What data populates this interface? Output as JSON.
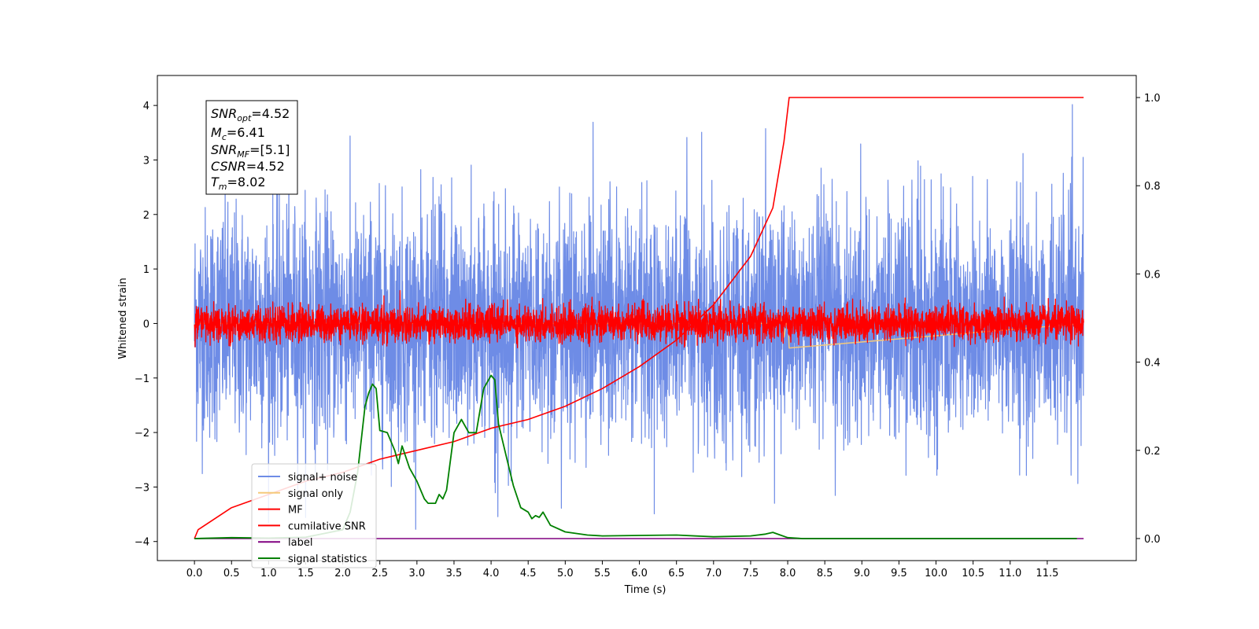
{
  "chart_data": {
    "type": "line",
    "xlabel": "Time (s)",
    "ylabel": "Whitened strain",
    "xlim": [
      -0.5,
      12.7
    ],
    "ylim": [
      -4.35,
      4.55
    ],
    "y2lim": [
      -0.05,
      1.05
    ],
    "xticks": [
      "0.0",
      "0.5",
      "1.0",
      "1.5",
      "2.0",
      "2.5",
      "3.0",
      "3.5",
      "4.0",
      "4.5",
      "5.0",
      "5.5",
      "6.0",
      "6.5",
      "7.0",
      "7.5",
      "8.0",
      "8.5",
      "9.0",
      "9.5",
      "10.0",
      "10.5",
      "11.0",
      "11.5"
    ],
    "xtick_values": [
      0,
      0.5,
      1,
      1.5,
      2,
      2.5,
      3,
      3.5,
      4,
      4.5,
      5,
      5.5,
      6,
      6.5,
      7,
      7.5,
      8,
      8.5,
      9,
      9.5,
      10,
      10.5,
      11,
      11.5
    ],
    "yticks": [
      "4",
      "3",
      "2",
      "1",
      "0",
      "−1",
      "−2",
      "−3",
      "−4"
    ],
    "ytick_values": [
      4,
      3,
      2,
      1,
      0,
      -1,
      -2,
      -3,
      -4
    ],
    "y2ticks": [
      "1.0",
      "0.8",
      "0.6",
      "0.4",
      "0.2",
      "0.0"
    ],
    "y2tick_values": [
      1.0,
      0.8,
      0.6,
      0.4,
      0.2,
      0.0
    ],
    "legend_position": "lower-left",
    "legend": [
      {
        "label": "signal+ noise",
        "color": "#6e8ce6"
      },
      {
        "label": "signal only",
        "color": "#f5c97a"
      },
      {
        "label": "MF",
        "color": "#ff0000"
      },
      {
        "label": "cumilative SNR",
        "color": "#ff0000"
      },
      {
        "label": "label",
        "color": "#800080"
      },
      {
        "label": "signal statistics",
        "color": "#008000"
      }
    ],
    "annotation": {
      "snr_opt_base": "SNR",
      "snr_opt_sub": "opt",
      "snr_opt_val": "=4.52",
      "mc_base": "M",
      "mc_sub": "c",
      "mc_val": "=6.41",
      "snr_mf_base": "SNR",
      "snr_mf_sub": "MF",
      "snr_mf_val": "=[5.1]",
      "csnr_base": "CSNR",
      "csnr_val": "=4.52",
      "tm_base": "T",
      "tm_sub": "m",
      "tm_val": "=8.02"
    },
    "series": [
      {
        "name": "signal+ noise",
        "axis": "left",
        "color": "#6e8ce6",
        "kind": "noise",
        "x_range": [
          0,
          11.99
        ],
        "amplitude_typical": 2.0,
        "min": -3.9,
        "max": 4.15
      },
      {
        "name": "signal only",
        "axis": "left",
        "color": "#f5c97a",
        "x": [
          0,
          7.8,
          7.9,
          7.95,
          8.0,
          8.02,
          11.99
        ],
        "y": [
          0,
          0,
          0.15,
          -0.25,
          0.2,
          -0.45,
          0
        ]
      },
      {
        "name": "MF",
        "axis": "left",
        "color": "#ff0000",
        "kind": "noise",
        "x_range": [
          0,
          11.99
        ],
        "amplitude_typical": 0.3,
        "min": -0.45,
        "max": 0.75
      },
      {
        "name": "cumilative SNR",
        "axis": "right",
        "color": "#ff0000",
        "x": [
          0,
          0.05,
          0.5,
          1.0,
          1.5,
          2.0,
          2.5,
          3.0,
          3.5,
          4.0,
          4.5,
          5.0,
          5.5,
          6.0,
          6.5,
          7.0,
          7.5,
          7.8,
          7.95,
          8.02,
          8.5,
          11.99
        ],
        "y": [
          0.0,
          0.02,
          0.07,
          0.1,
          0.13,
          0.15,
          0.18,
          0.2,
          0.22,
          0.25,
          0.27,
          0.3,
          0.34,
          0.39,
          0.45,
          0.53,
          0.64,
          0.75,
          0.9,
          1.0,
          1.0,
          1.0
        ]
      },
      {
        "name": "label",
        "axis": "right",
        "color": "#800080",
        "x": [
          0,
          11.99
        ],
        "y": [
          0,
          0
        ]
      },
      {
        "name": "signal statistics",
        "axis": "right",
        "color": "#008000",
        "x": [
          0,
          0.5,
          1.0,
          1.5,
          2.0,
          2.1,
          2.2,
          2.3,
          2.35,
          2.4,
          2.45,
          2.5,
          2.6,
          2.7,
          2.75,
          2.8,
          2.9,
          3.0,
          3.1,
          3.15,
          3.25,
          3.3,
          3.35,
          3.4,
          3.5,
          3.6,
          3.7,
          3.8,
          3.9,
          4.0,
          4.05,
          4.1,
          4.2,
          4.3,
          4.4,
          4.5,
          4.55,
          4.6,
          4.65,
          4.7,
          4.8,
          5.0,
          5.3,
          5.5,
          6.0,
          6.5,
          7.0,
          7.5,
          7.7,
          7.8,
          7.9,
          8.0,
          8.2,
          8.5,
          11.9
        ],
        "y": [
          0.0,
          0.002,
          0.001,
          0.003,
          0.02,
          0.06,
          0.15,
          0.3,
          0.33,
          0.35,
          0.34,
          0.245,
          0.24,
          0.2,
          0.17,
          0.21,
          0.16,
          0.13,
          0.09,
          0.08,
          0.08,
          0.1,
          0.09,
          0.11,
          0.24,
          0.27,
          0.24,
          0.24,
          0.34,
          0.37,
          0.36,
          0.26,
          0.19,
          0.12,
          0.07,
          0.06,
          0.045,
          0.052,
          0.048,
          0.06,
          0.03,
          0.015,
          0.008,
          0.006,
          0.007,
          0.008,
          0.004,
          0.006,
          0.01,
          0.014,
          0.008,
          0.002,
          0.0,
          0.0,
          0.0
        ]
      }
    ]
  }
}
